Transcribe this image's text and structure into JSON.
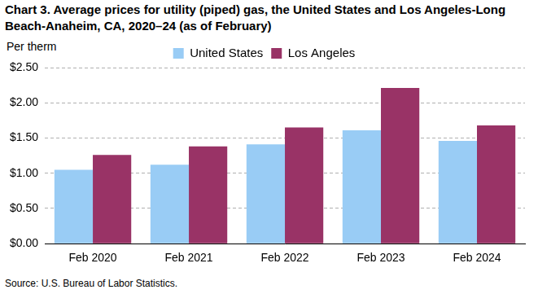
{
  "chart_data": {
    "type": "bar",
    "title": "Chart 3. Average prices for utility (piped) gas, the United States and Los Angeles-Long Beach-Anaheim, CA, 2020–24 (as of February)",
    "ylabel": "Per therm",
    "note": "Source: U.S. Bureau of Labor Statistics.",
    "categories": [
      "Feb 2020",
      "Feb 2021",
      "Feb 2022",
      "Feb 2023",
      "Feb 2024"
    ],
    "series": [
      {
        "name": "United States",
        "color": "#99ccf5",
        "values": [
          1.05,
          1.12,
          1.41,
          1.61,
          1.46
        ]
      },
      {
        "name": "Los Angeles",
        "color": "#993366",
        "values": [
          1.26,
          1.38,
          1.65,
          2.21,
          1.68
        ]
      }
    ],
    "ylim": [
      0,
      2.5
    ],
    "yticks": [
      {
        "value": 0,
        "label": "$0.00"
      },
      {
        "value": 0.5,
        "label": "$0.50"
      },
      {
        "value": 1,
        "label": "$1.00"
      },
      {
        "value": 1.5,
        "label": "$1.50"
      },
      {
        "value": 2,
        "label": "$2.00"
      },
      {
        "value": 2.5,
        "label": "$2.50"
      }
    ],
    "grid": true,
    "legend": "top"
  }
}
